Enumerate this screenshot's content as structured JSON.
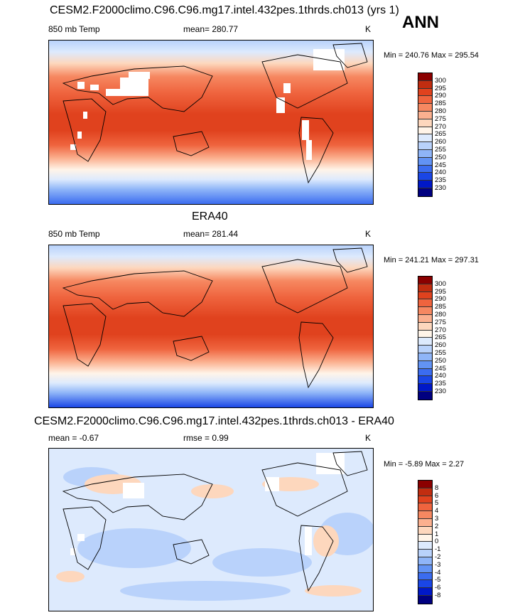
{
  "season": "ANN",
  "palette_temp": [
    "#ffffff",
    "#000080",
    "#0018c8",
    "#1a46e6",
    "#3b6cf0",
    "#6293f5",
    "#8fb5f8",
    "#b9d2fb",
    "#ddeafd",
    "#fff4e8",
    "#fdd7bd",
    "#fbb08f",
    "#f68861",
    "#ef643e",
    "#e0421e",
    "#c12d10",
    "#8b0000"
  ],
  "panels": [
    {
      "title": "CESM2.F2000climo.C96.C96.mg17.intel.432pes.1thrds.ch013 (yrs 1)",
      "left_label": "850 mb Temp",
      "center_label": "mean= 280.77",
      "right_label": "K",
      "minmax": "Min = 240.76 Max = 295.54",
      "levels": [
        "300",
        "295",
        "290",
        "285",
        "280",
        "275",
        "270",
        "265",
        "260",
        "255",
        "250",
        "245",
        "240",
        "235",
        "230"
      ],
      "colors": [
        "#8b0000",
        "#c12d10",
        "#e0421e",
        "#ef643e",
        "#f68861",
        "#fbb08f",
        "#fdd7bd",
        "#fff4e8",
        "#ddeafd",
        "#b9d2fb",
        "#8fb5f8",
        "#6293f5",
        "#3b6cf0",
        "#1a46e6",
        "#0018c8",
        "#000080"
      ]
    },
    {
      "title": "ERA40",
      "left_label": "850 mb Temp",
      "center_label": "mean= 281.44",
      "right_label": "K",
      "minmax": "Min = 241.21 Max = 297.31",
      "levels": [
        "300",
        "295",
        "290",
        "285",
        "280",
        "275",
        "270",
        "265",
        "260",
        "255",
        "250",
        "245",
        "240",
        "235",
        "230"
      ],
      "colors": [
        "#8b0000",
        "#c12d10",
        "#e0421e",
        "#ef643e",
        "#f68861",
        "#fbb08f",
        "#fdd7bd",
        "#fff4e8",
        "#ddeafd",
        "#b9d2fb",
        "#8fb5f8",
        "#6293f5",
        "#3b6cf0",
        "#1a46e6",
        "#0018c8",
        "#000080"
      ]
    },
    {
      "title": "CESM2.F2000climo.C96.C96.mg17.intel.432pes.1thrds.ch013 - ERA40",
      "left_label": "mean =  -0.67",
      "center_label": "rmse =   0.99",
      "right_label": "K",
      "minmax": "Min =  -5.89 Max =   2.27",
      "levels": [
        "8",
        "6",
        "5",
        "4",
        "3",
        "2",
        "1",
        "0",
        "-1",
        "-2",
        "-3",
        "-4",
        "-5",
        "-6",
        "-8"
      ],
      "colors": [
        "#8b0000",
        "#c12d10",
        "#e0421e",
        "#ef643e",
        "#f68861",
        "#fbb08f",
        "#fdd7bd",
        "#fff4e8",
        "#ddeafd",
        "#b9d2fb",
        "#8fb5f8",
        "#6293f5",
        "#3b6cf0",
        "#1a46e6",
        "#0018c8",
        "#000080"
      ]
    }
  ]
}
